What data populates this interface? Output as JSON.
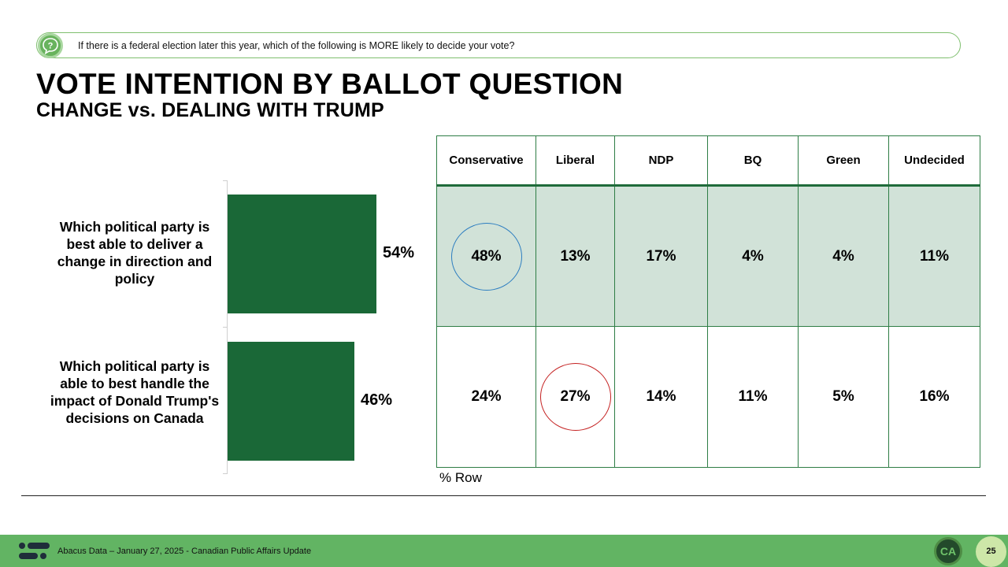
{
  "question": {
    "icon": "question-chat-icon",
    "text": "If there is a federal election later this year, which of the following is MORE likely to decide your vote?"
  },
  "title": "VOTE INTENTION BY BALLOT QUESTION",
  "subtitle": "CHANGE vs. DEALING WITH TRUMP",
  "chart_data": {
    "type": "bar",
    "orientation": "horizontal",
    "title": "",
    "xlabel": "",
    "ylabel": "",
    "xlim": [
      0,
      100
    ],
    "categories": [
      "Which political party is best able to deliver a change in direction and policy",
      "Which political party is able to best handle the impact of Donald Trump's decisions on Canada"
    ],
    "values": [
      54,
      46
    ],
    "value_labels": [
      "54%",
      "46%"
    ],
    "bar_color": "#1a6837",
    "grid": false,
    "legend": "none"
  },
  "table": {
    "headers": [
      "Conservative",
      "Liberal",
      "NDP",
      "BQ",
      "Green",
      "Undecided"
    ],
    "rows": [
      {
        "values": [
          "48%",
          "13%",
          "17%",
          "4%",
          "4%",
          "11%"
        ],
        "highlight_col": 0,
        "highlight_color": "#2c7dc0",
        "shaded": true
      },
      {
        "values": [
          "24%",
          "27%",
          "14%",
          "11%",
          "5%",
          "16%"
        ],
        "highlight_col": 1,
        "highlight_color": "#c42121",
        "shaded": false
      }
    ],
    "note": "% Row",
    "border_color": "#2e7d45",
    "shade_color": "#d1e2d8"
  },
  "footer": {
    "logo": "abacus-logo-icon",
    "text": "Abacus Data – January 27, 2025 - Canadian Public Affairs Update",
    "badge": "CA",
    "page_number": "25",
    "background": "#62b463"
  }
}
